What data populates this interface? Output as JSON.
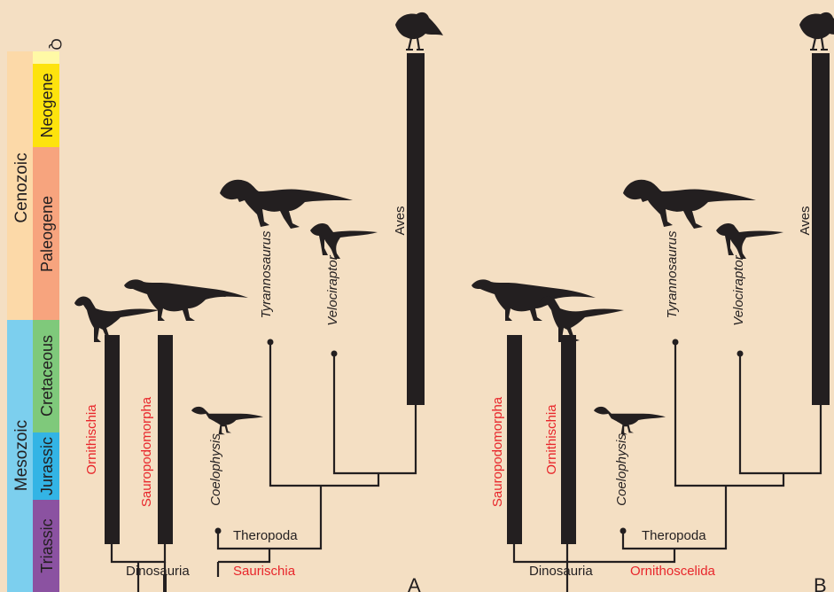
{
  "timescale": {
    "eras": [
      {
        "key": "cenozoic",
        "label": "Cenozoic",
        "color": "#fcd9a8"
      },
      {
        "key": "mesozoic",
        "label": "Mesozoic",
        "color": "#7ccfee"
      }
    ],
    "periods": [
      {
        "key": "q",
        "label": "Q",
        "color": "#fff9a6"
      },
      {
        "key": "neogene",
        "label": "Neogene",
        "color": "#fde30d"
      },
      {
        "key": "paleogene",
        "label": "Paleogene",
        "color": "#f7a47e"
      },
      {
        "key": "cretaceous",
        "label": "Cretaceous",
        "color": "#7fc97b"
      },
      {
        "key": "jurassic",
        "label": "Jurassic",
        "color": "#33b4e5"
      },
      {
        "key": "triassic",
        "label": "Triassic",
        "color": "#8b52a1"
      }
    ]
  },
  "panels": [
    {
      "panel_label": "A",
      "taxa": {
        "t1": {
          "name": "Ornithischia",
          "color": "red",
          "italic": false
        },
        "t2": {
          "name": "Sauropodomorpha",
          "color": "red",
          "italic": false
        },
        "t3": {
          "name": "Coelophysis",
          "color": "black",
          "italic": true
        },
        "t4": {
          "name": "Tyrannosaurus",
          "color": "black",
          "italic": true
        },
        "t5": {
          "name": "Velociraptor",
          "color": "black",
          "italic": true
        },
        "t6": {
          "name": "Aves",
          "color": "black",
          "italic": false
        }
      },
      "clades": {
        "dinosauria": {
          "name": "Dinosauria",
          "color": "black"
        },
        "inner": {
          "name": "Saurischia",
          "color": "red"
        },
        "theropoda": {
          "name": "Theropoda",
          "color": "black"
        }
      }
    },
    {
      "panel_label": "B",
      "taxa": {
        "t1": {
          "name": "Sauropodomorpha",
          "color": "red",
          "italic": false
        },
        "t2": {
          "name": "Ornithischia",
          "color": "red",
          "italic": false
        },
        "t3": {
          "name": "Coelophysis",
          "color": "black",
          "italic": true
        },
        "t4": {
          "name": "Tyrannosaurus",
          "color": "black",
          "italic": true
        },
        "t5": {
          "name": "Velociraptor",
          "color": "black",
          "italic": true
        },
        "t6": {
          "name": "Aves",
          "color": "black",
          "italic": false
        }
      },
      "clades": {
        "dinosauria": {
          "name": "Dinosauria",
          "color": "black"
        },
        "inner": {
          "name": "Ornithoscelida",
          "color": "red"
        },
        "theropoda": {
          "name": "Theropoda",
          "color": "black"
        }
      }
    }
  ],
  "colors": {
    "background": "#f4dfc3",
    "branch": "#231f20",
    "label_red": "#e8262b",
    "label_black": "#231f20"
  }
}
